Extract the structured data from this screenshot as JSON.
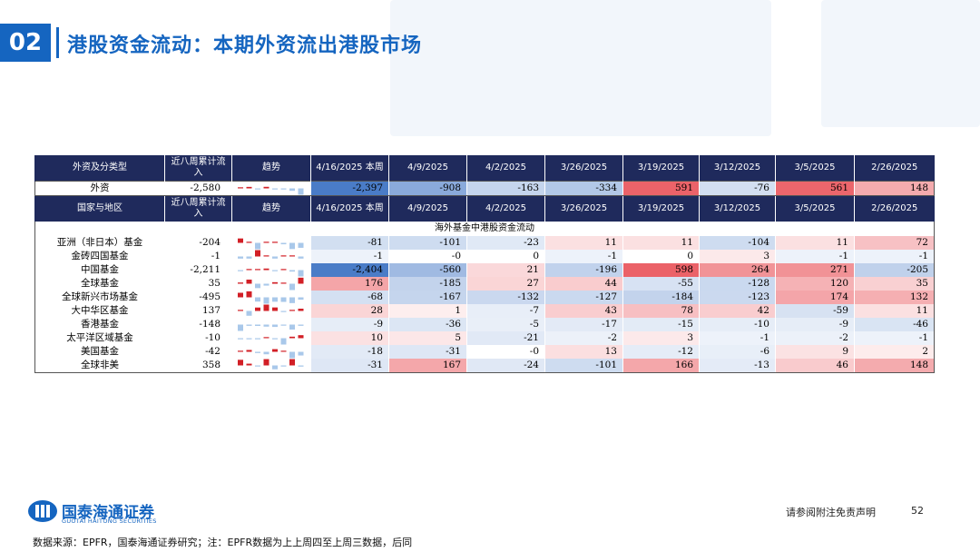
{
  "slide": {
    "number": "02",
    "title": "港股资金流动：本期外资流出港股市场",
    "logo_cn": "国泰海通证券",
    "logo_en": "GUOTAI HAITONG SECURITIES",
    "disclaimer": "请参阅附注免责声明",
    "page": "52",
    "source": "数据来源：EPFR，国泰海通证券研究；注：EPFR数据为上上周四至上周三数据，后同"
  },
  "table": {
    "header1": [
      "外资及分类型",
      "近八周累计流入",
      "趋势",
      "4/16/2025 本周",
      "4/9/2025",
      "4/2/2025",
      "3/26/2025",
      "3/19/2025",
      "3/12/2025",
      "3/5/2025",
      "2/26/2025"
    ],
    "header2": [
      "国家与地区",
      "近八周累计流入",
      "趋势",
      "4/16/2025 本周",
      "4/9/2025",
      "4/2/2025",
      "3/26/2025",
      "3/19/2025",
      "3/12/2025",
      "3/5/2025",
      "2/26/2025"
    ],
    "section_label": "海外基金中港股资金流动",
    "foreign": {
      "name": "外资",
      "cum": "-2,580",
      "values": [
        "-2,397",
        "-908",
        "-163",
        "-334",
        "591",
        "-76",
        "561",
        "148"
      ]
    },
    "rows": [
      {
        "name": "亚洲（非日本）基金",
        "cum": "-204",
        "values": [
          "-81",
          "-101",
          "-23",
          "11",
          "11",
          "-104",
          "11",
          "72"
        ]
      },
      {
        "name": "金砖四国基金",
        "cum": "-1",
        "values": [
          "-1",
          "-0",
          "0",
          "-1",
          "0",
          "3",
          "-1",
          "-1"
        ]
      },
      {
        "name": "中国基金",
        "cum": "-2,211",
        "values": [
          "-2,404",
          "-560",
          "21",
          "-196",
          "598",
          "264",
          "271",
          "-205"
        ]
      },
      {
        "name": "全球基金",
        "cum": "35",
        "values": [
          "176",
          "-185",
          "27",
          "44",
          "-55",
          "-128",
          "120",
          "35"
        ]
      },
      {
        "name": "全球新兴市场基金",
        "cum": "-495",
        "values": [
          "-68",
          "-167",
          "-132",
          "-127",
          "-184",
          "-123",
          "174",
          "132"
        ]
      },
      {
        "name": "大中华区基金",
        "cum": "137",
        "values": [
          "28",
          "1",
          "-7",
          "43",
          "78",
          "42",
          "-59",
          "11"
        ]
      },
      {
        "name": "香港基金",
        "cum": "-148",
        "values": [
          "-9",
          "-36",
          "-5",
          "-17",
          "-15",
          "-10",
          "-9",
          "-46"
        ]
      },
      {
        "name": "太平洋区域基金",
        "cum": "-10",
        "values": [
          "10",
          "5",
          "-21",
          "-2",
          "3",
          "-1",
          "-2",
          "-1"
        ]
      },
      {
        "name": "美国基金",
        "cum": "-42",
        "values": [
          "-18",
          "-31",
          "-0",
          "13",
          "-12",
          "-6",
          "9",
          "2"
        ]
      },
      {
        "name": "全球非美",
        "cum": "358",
        "values": [
          "-31",
          "167",
          "-24",
          "-101",
          "166",
          "-13",
          "46",
          "148"
        ]
      }
    ]
  },
  "colors": {
    "header": "#1f2a5c",
    "negative": "#4a7cc7",
    "positive": "#e8484f",
    "brand": "#1565c0"
  }
}
